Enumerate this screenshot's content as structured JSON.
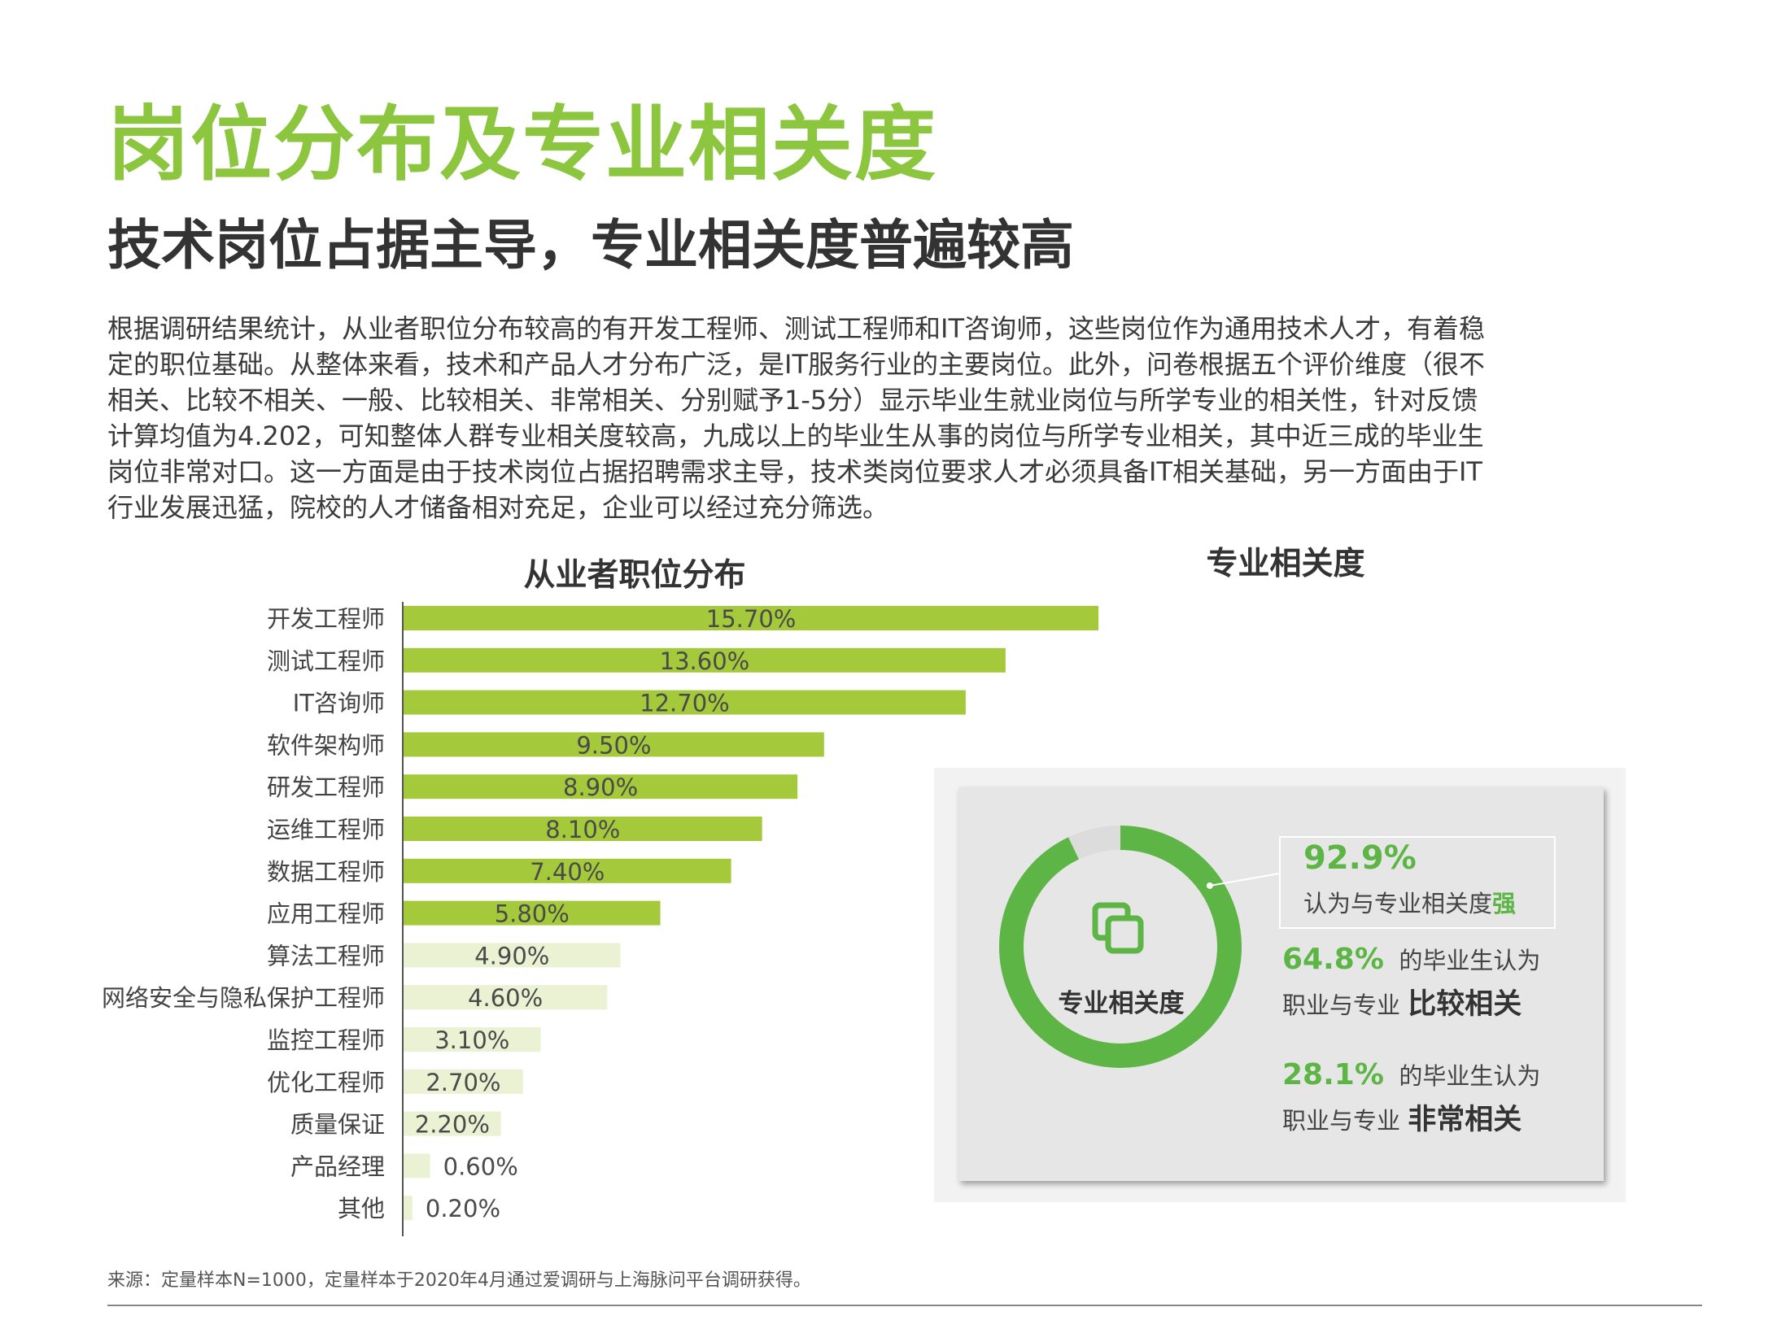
{
  "page": {
    "title": "岗位分布及专业相关度",
    "subtitle": "技术岗位占据主导，专业相关度普遍较高",
    "body_lines": [
      "根据调研结果统计，从业者职位分布较高的有开发工程师、测试工程师和IT咨询师，这些岗位作为通用技术人才，有着稳",
      "定的职位基础。从整体来看，技术和产品人才分布广泛，是IT服务行业的主要岗位。此外，问卷根据五个评价维度（很不",
      "相关、比较不相关、一般、比较相关、非常相关、分别赋予1-5分）显示毕业生就业岗位与所学专业的相关性，针对反馈",
      "计算均值为4.202，可知整体人群专业相关度较高，九成以上的毕业生从事的岗位与所学专业相关，其中近三成的毕业生",
      "岗位非常对口。这一方面是由于技术岗位占据招聘需求主导，技术类岗位要求人才必须具备IT相关基础，另一方面由于IT",
      "行业发展迅猛，院校的人才储备相对充足，企业可以经过充分筛选。"
    ],
    "footnote": "来源：定量样本N=1000，定量样本于2020年4月通过爱调研与上海脉问平台调研获得。"
  },
  "colors": {
    "title_green": "#8cc63f",
    "bar_dark": "#a4c93a",
    "bar_light": "#eaf2d3",
    "donut_green": "#5cb544",
    "panel_bg": "#e6e6e6"
  },
  "chart_data": [
    {
      "type": "bar",
      "orientation": "horizontal",
      "title": "从业者职位分布",
      "categories": [
        "开发工程师",
        "测试工程师",
        "IT咨询师",
        "软件架构师",
        "研发工程师",
        "运维工程师",
        "数据工程师",
        "应用工程师",
        "算法工程师",
        "网络安全与隐私保护工程师",
        "监控工程师",
        "优化工程师",
        "质量保证",
        "产品经理",
        "其他"
      ],
      "values": [
        15.7,
        13.6,
        12.7,
        9.5,
        8.9,
        8.1,
        7.4,
        5.8,
        4.9,
        4.6,
        3.1,
        2.7,
        2.2,
        0.6,
        0.2
      ],
      "labels": [
        "15.70%",
        "13.60%",
        "12.70%",
        "9.50%",
        "8.90%",
        "8.10%",
        "7.40%",
        "5.80%",
        "4.90%",
        "4.60%",
        "3.10%",
        "2.70%",
        "2.20%",
        "0.60%",
        "0.20%"
      ],
      "unit": "%",
      "highlight_count": 8,
      "xlabel": "",
      "ylabel": ""
    },
    {
      "type": "pie",
      "style": "donut",
      "title": "专业相关度",
      "center_label": "专业相关度",
      "center_icon": "overlapping-squares-icon",
      "values": [
        92.9,
        7.1
      ],
      "stats": [
        {
          "pct": "92.9%",
          "text": "认为与专业相关度",
          "emphasis": "强"
        },
        {
          "pct": "64.8%",
          "prefix": "的毕业生认为",
          "text": "职业与专业",
          "emphasis": "比较相关"
        },
        {
          "pct": "28.1%",
          "prefix": "的毕业生认为",
          "text": "职业与专业",
          "emphasis": "非常相关"
        }
      ]
    }
  ]
}
